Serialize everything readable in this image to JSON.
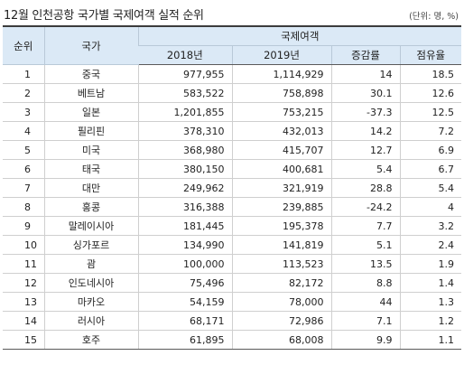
{
  "title": "12월 인천공항 국가별 국제여객 실적 순위",
  "unit": "(단위: 명, %)",
  "headers": {
    "rank": "순위",
    "country": "국가",
    "group": "국제여객",
    "y2018": "2018년",
    "y2019": "2019년",
    "rate": "증감률",
    "share": "점유율"
  },
  "rows": [
    {
      "rank": "1",
      "country": "중국",
      "y2018": "977,955",
      "y2019": "1,114,929",
      "rate": "14",
      "share": "18.5"
    },
    {
      "rank": "2",
      "country": "베트남",
      "y2018": "583,522",
      "y2019": "758,898",
      "rate": "30.1",
      "share": "12.6"
    },
    {
      "rank": "3",
      "country": "일본",
      "y2018": "1,201,855",
      "y2019": "753,215",
      "rate": "-37.3",
      "share": "12.5"
    },
    {
      "rank": "4",
      "country": "필리핀",
      "y2018": "378,310",
      "y2019": "432,013",
      "rate": "14.2",
      "share": "7.2"
    },
    {
      "rank": "5",
      "country": "미국",
      "y2018": "368,980",
      "y2019": "415,707",
      "rate": "12.7",
      "share": "6.9"
    },
    {
      "rank": "6",
      "country": "태국",
      "y2018": "380,150",
      "y2019": "400,681",
      "rate": "5.4",
      "share": "6.7"
    },
    {
      "rank": "7",
      "country": "대만",
      "y2018": "249,962",
      "y2019": "321,919",
      "rate": "28.8",
      "share": "5.4"
    },
    {
      "rank": "8",
      "country": "홍콩",
      "y2018": "316,388",
      "y2019": "239,885",
      "rate": "-24.2",
      "share": "4"
    },
    {
      "rank": "9",
      "country": "말레이시아",
      "y2018": "181,445",
      "y2019": "195,378",
      "rate": "7.7",
      "share": "3.2"
    },
    {
      "rank": "10",
      "country": "싱가포르",
      "y2018": "134,990",
      "y2019": "141,819",
      "rate": "5.1",
      "share": "2.4"
    },
    {
      "rank": "11",
      "country": "괌",
      "y2018": "100,000",
      "y2019": "113,523",
      "rate": "13.5",
      "share": "1.9"
    },
    {
      "rank": "12",
      "country": "인도네시아",
      "y2018": "75,496",
      "y2019": "82,172",
      "rate": "8.8",
      "share": "1.4"
    },
    {
      "rank": "13",
      "country": "마카오",
      "y2018": "54,159",
      "y2019": "78,000",
      "rate": "44",
      "share": "1.3"
    },
    {
      "rank": "14",
      "country": "러시아",
      "y2018": "68,171",
      "y2019": "72,986",
      "rate": "7.1",
      "share": "1.2"
    },
    {
      "rank": "15",
      "country": "호주",
      "y2018": "61,895",
      "y2019": "68,008",
      "rate": "9.9",
      "share": "1.1"
    }
  ]
}
